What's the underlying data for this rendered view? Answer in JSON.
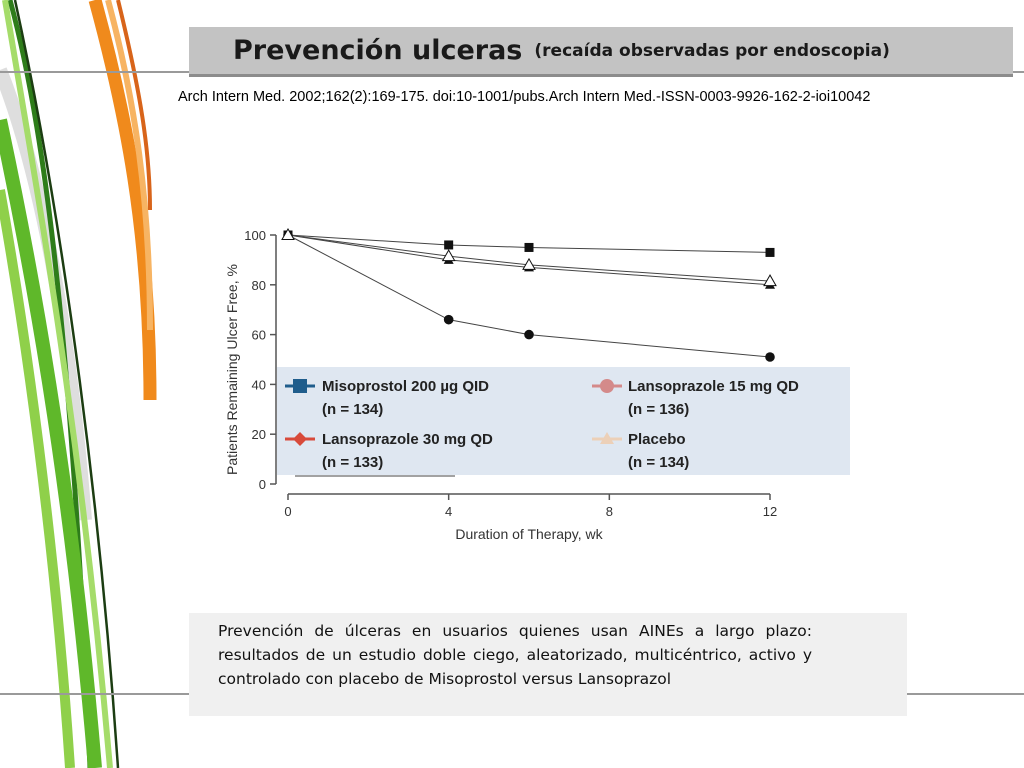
{
  "header": {
    "title_main": "Prevención  ulceras",
    "title_sub": "(recaída observadas por endoscopia)"
  },
  "citation": "Arch Intern Med. 2002;162(2):169-175. doi:10-1001/pubs.Arch Intern Med.-ISSN-0003-9926-162-2-ioi10042",
  "caption": "Prevención de úlceras en usuarios quienes usan AINEs a largo plazo: resultados de un estudio doble ciego, aleatorizado, multicéntrico, activo y controlado con placebo de Misoprostol versus Lansoprazol",
  "chart_data": {
    "type": "line",
    "xlabel": "Duration of Therapy, wk",
    "ylabel": "Patients Remaining Ulcer Free, %",
    "xlim": [
      0,
      12
    ],
    "ylim": [
      0,
      100
    ],
    "x_ticks": [
      0,
      4,
      8,
      12
    ],
    "y_ticks": [
      0,
      20,
      40,
      60,
      80,
      100
    ],
    "x": [
      0,
      4,
      6,
      12
    ],
    "legend_position": "bottom (overlay panel)",
    "series": [
      {
        "name": "Misoprostol 200 µg QID",
        "n_label": "(n = 134)",
        "marker": "square",
        "color": "#1f5d8c",
        "values": [
          100,
          96,
          95,
          93
        ]
      },
      {
        "name": "Lansoprazole 15 mg QD",
        "n_label": "(n = 136)",
        "marker": "circle",
        "color": "#d48a8a",
        "values": [
          100,
          66,
          60,
          51
        ]
      },
      {
        "name": "Lansoprazole 30 mg QD",
        "n_label": "(n = 133)",
        "marker": "diamond",
        "color": "#d84a3a",
        "values": [
          100,
          90,
          87,
          80
        ]
      },
      {
        "name": "Placebo",
        "n_label": "(n = 134)",
        "marker": "triangle",
        "color": "#ecd0b8",
        "values": [
          100,
          91.5,
          88,
          81.5
        ]
      }
    ],
    "plot_markers": [
      {
        "series": 0,
        "shape": "square"
      },
      {
        "series": 1,
        "shape": "circle"
      },
      {
        "series": 2,
        "shape": "triangle-filled"
      },
      {
        "series": 3,
        "shape": "triangle-open"
      }
    ]
  }
}
